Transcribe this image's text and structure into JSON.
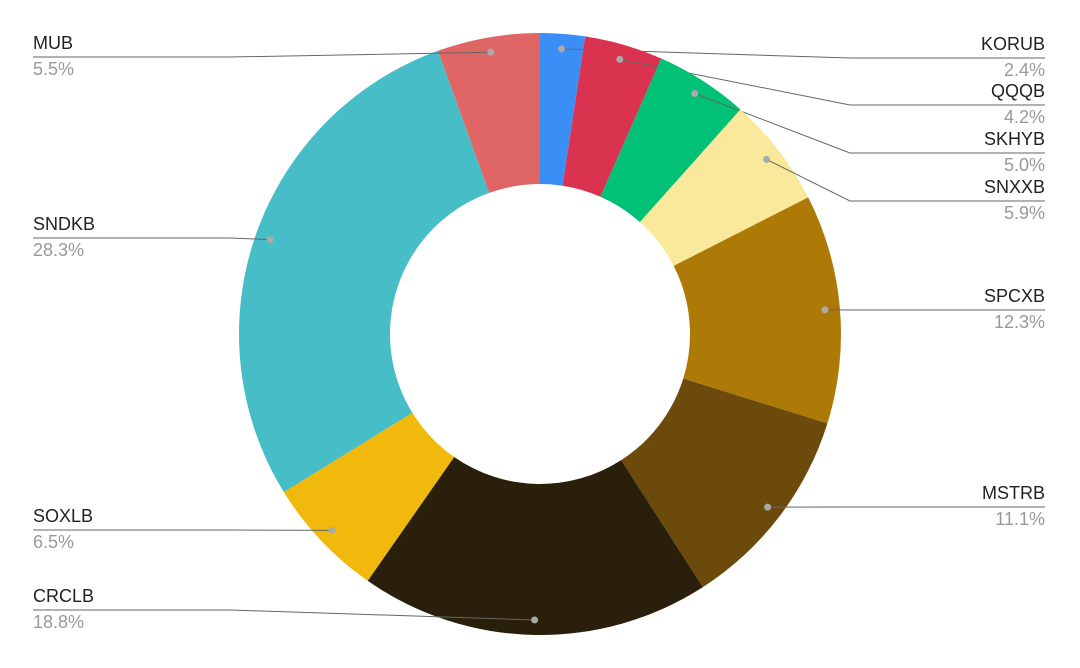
{
  "chart_data": {
    "type": "donut",
    "categories": [
      "KORUB",
      "QQQB",
      "SKHYB",
      "SNXXB",
      "SPCXB",
      "MSTRB",
      "CRCLB",
      "SOXLB",
      "SNDKB",
      "MUB"
    ],
    "values": [
      2.4,
      4.2,
      5.0,
      5.9,
      12.3,
      11.1,
      18.8,
      6.5,
      28.3,
      5.5
    ],
    "value_labels": [
      "2.4%",
      "4.2%",
      "5.0%",
      "5.9%",
      "12.3%",
      "11.1%",
      "18.8%",
      "6.5%",
      "28.3%",
      "5.5%"
    ],
    "colors": [
      "#3a8ef6",
      "#d93350",
      "#00c176",
      "#fae89b",
      "#ad7a07",
      "#6b4a0c",
      "#2a1f0a",
      "#f0b90b",
      "#47bdc7",
      "#e06666"
    ]
  }
}
